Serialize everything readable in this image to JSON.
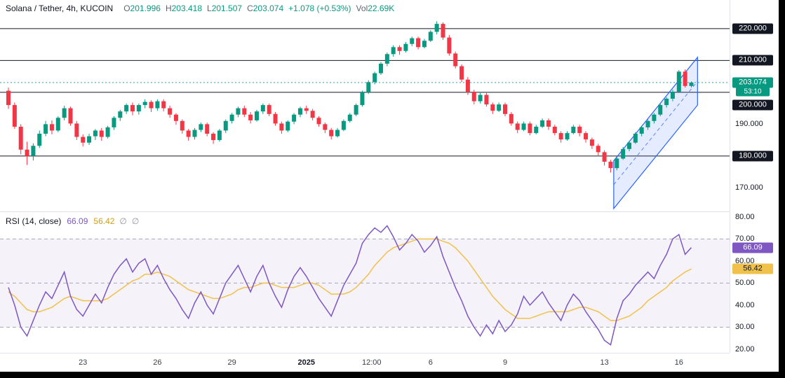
{
  "legend": {
    "symbol": "Solana / Tether, 4h, KUCOIN",
    "ohlc": [
      {
        "label": "O",
        "value": "201.996"
      },
      {
        "label": "H",
        "value": "203.418"
      },
      {
        "label": "L",
        "value": "201.507"
      },
      {
        "label": "C",
        "value": "203.074"
      }
    ],
    "change": "+1.078 (+0.53%)",
    "vol_label": "Vol",
    "vol_value": "22.69K"
  },
  "rsi_legend": {
    "title": "RSI (14, close)",
    "value": "66.09",
    "ma_value": "56.42",
    "icon": "∅"
  },
  "price_axis": {
    "plain": [
      {
        "text": "190.000",
        "price": 190
      },
      {
        "text": "170.000",
        "price": 170
      }
    ],
    "badges": [
      {
        "text": "220.000",
        "price": 220
      },
      {
        "text": "210.000",
        "price": 210
      },
      {
        "text": "200.000",
        "price": 200,
        "offset": 18
      },
      {
        "text": "180.000",
        "price": 180
      }
    ],
    "last": {
      "text": "203.074",
      "price": 203.074
    },
    "countdown": {
      "text": "53:10",
      "price": 203.074,
      "offset": 13
    }
  },
  "rsi_axis": {
    "plain": [
      {
        "text": "80.00",
        "value": 80
      },
      {
        "text": "70.00",
        "value": 70
      },
      {
        "text": "60.00",
        "value": 60
      },
      {
        "text": "50.00",
        "value": 50
      },
      {
        "text": "40.00",
        "value": 40
      },
      {
        "text": "30.00",
        "value": 30
      },
      {
        "text": "20.00",
        "value": 20
      }
    ],
    "badges": [
      {
        "text": "66.09",
        "value": 66.09,
        "bg": "#7e57c2",
        "fg": "#ffffff"
      },
      {
        "text": "56.42",
        "value": 56.42,
        "bg": "#f0c14b",
        "fg": "#131722"
      }
    ]
  },
  "colors": {
    "up": "#089981",
    "down": "#f23645",
    "level": "#131722",
    "rsi": "#7e57c2",
    "rsi_ma": "#f0c14b",
    "guide": "#a5a8b6",
    "band": "#7e57c2",
    "channel": "#2962ff",
    "sep": "#e0e3eb"
  },
  "chart_data": [
    {
      "type": "candlestick",
      "title": "Solana / Tether, 4h, KUCOIN",
      "last_bar": {
        "o": 201.996,
        "h": 203.418,
        "l": 201.507,
        "c": 203.074,
        "change": "+1.078 (+0.53%)",
        "volume": "22.69K"
      },
      "ylim": [
        163,
        229
      ],
      "horizontal_levels": [
        220,
        210,
        200,
        180
      ],
      "last_price_line": 203.074,
      "channel": {
        "x1_index": 97.5,
        "x2_index": 111,
        "upper": [
          178.5,
          211
        ],
        "lower": [
          163.5,
          196
        ]
      },
      "x_ticks": [
        {
          "text": "23",
          "index": 12
        },
        {
          "text": "26",
          "index": 24
        },
        {
          "text": "29",
          "index": 36
        },
        {
          "text": "2025",
          "index": 48,
          "bold": true
        },
        {
          "text": "12:00",
          "index": 58.5
        },
        {
          "text": "6",
          "index": 68
        },
        {
          "text": "9",
          "index": 80
        },
        {
          "text": "13",
          "index": 96
        },
        {
          "text": "16",
          "index": 108
        }
      ],
      "ohlc": [
        [
          200.5,
          201.5,
          194.8,
          196.0
        ],
        [
          196.0,
          196.8,
          188.5,
          189.2
        ],
        [
          189.2,
          190.0,
          180.5,
          182.0
        ],
        [
          182.0,
          184.5,
          177.2,
          180.0
        ],
        [
          180.0,
          184.0,
          178.6,
          183.2
        ],
        [
          183.2,
          188.0,
          182.5,
          187.0
        ],
        [
          187.0,
          191.0,
          186.2,
          190.0
        ],
        [
          190.0,
          191.2,
          186.8,
          188.0
        ],
        [
          188.0,
          192.5,
          187.5,
          192.0
        ],
        [
          192.0,
          195.8,
          191.2,
          195.0
        ],
        [
          195.0,
          195.5,
          189.5,
          190.2
        ],
        [
          190.2,
          191.0,
          185.0,
          186.0
        ],
        [
          186.0,
          186.8,
          183.0,
          184.2
        ],
        [
          184.2,
          187.0,
          183.5,
          186.2
        ],
        [
          186.2,
          188.5,
          185.0,
          188.0
        ],
        [
          188.0,
          188.8,
          184.8,
          186.0
        ],
        [
          186.0,
          189.5,
          185.5,
          189.0
        ],
        [
          189.0,
          192.5,
          188.2,
          192.0
        ],
        [
          192.0,
          194.5,
          191.0,
          194.0
        ],
        [
          194.0,
          196.5,
          193.2,
          196.0
        ],
        [
          196.0,
          196.8,
          192.8,
          194.0
        ],
        [
          194.0,
          196.5,
          193.0,
          196.0
        ],
        [
          196.0,
          197.8,
          195.0,
          197.0
        ],
        [
          197.0,
          197.5,
          193.8,
          195.0
        ],
        [
          195.0,
          197.8,
          194.2,
          197.2
        ],
        [
          197.2,
          197.8,
          194.0,
          195.0
        ],
        [
          195.0,
          195.8,
          192.0,
          193.0
        ],
        [
          193.0,
          193.5,
          189.8,
          191.0
        ],
        [
          191.0,
          191.5,
          187.0,
          188.0
        ],
        [
          188.0,
          188.5,
          184.8,
          186.0
        ],
        [
          186.0,
          188.8,
          185.2,
          188.2
        ],
        [
          188.2,
          190.5,
          187.5,
          190.0
        ],
        [
          190.0,
          190.5,
          186.2,
          187.0
        ],
        [
          187.0,
          187.5,
          183.8,
          185.0
        ],
        [
          185.0,
          188.5,
          184.5,
          188.0
        ],
        [
          188.0,
          191.5,
          187.2,
          191.0
        ],
        [
          191.0,
          193.5,
          190.2,
          193.0
        ],
        [
          193.0,
          195.5,
          192.2,
          195.0
        ],
        [
          195.0,
          195.8,
          192.2,
          193.0
        ],
        [
          193.0,
          193.8,
          190.2,
          191.2
        ],
        [
          191.2,
          194.5,
          190.8,
          194.0
        ],
        [
          194.0,
          196.5,
          193.2,
          196.0
        ],
        [
          196.0,
          196.5,
          192.5,
          193.2
        ],
        [
          193.2,
          193.8,
          189.5,
          190.2
        ],
        [
          190.2,
          190.8,
          187.0,
          188.0
        ],
        [
          188.0,
          191.2,
          187.5,
          190.8
        ],
        [
          190.8,
          193.5,
          190.0,
          193.0
        ],
        [
          193.0,
          195.5,
          192.2,
          195.0
        ],
        [
          195.0,
          195.8,
          193.2,
          194.2
        ],
        [
          194.2,
          194.8,
          191.2,
          192.0
        ],
        [
          192.0,
          192.5,
          189.2,
          190.0
        ],
        [
          190.0,
          190.5,
          187.2,
          188.2
        ],
        [
          188.2,
          188.8,
          185.2,
          186.2
        ],
        [
          186.2,
          188.8,
          185.8,
          188.2
        ],
        [
          188.2,
          191.5,
          187.8,
          191.0
        ],
        [
          191.0,
          193.5,
          190.5,
          193.0
        ],
        [
          193.0,
          196.5,
          192.5,
          196.0
        ],
        [
          196.0,
          200.5,
          195.5,
          200.0
        ],
        [
          200.0,
          203.8,
          199.5,
          203.2
        ],
        [
          203.2,
          206.5,
          202.5,
          206.0
        ],
        [
          206.0,
          209.5,
          205.5,
          209.0
        ],
        [
          209.0,
          212.5,
          208.2,
          212.0
        ],
        [
          212.0,
          214.8,
          211.2,
          214.2
        ],
        [
          214.2,
          214.8,
          211.8,
          213.0
        ],
        [
          213.0,
          215.8,
          212.5,
          215.2
        ],
        [
          215.2,
          217.5,
          214.5,
          217.0
        ],
        [
          217.0,
          217.5,
          213.5,
          214.2
        ],
        [
          214.2,
          216.8,
          213.8,
          216.2
        ],
        [
          216.2,
          219.5,
          215.8,
          219.0
        ],
        [
          219.0,
          222.3,
          218.2,
          221.5
        ],
        [
          221.5,
          222.0,
          216.5,
          217.2
        ],
        [
          217.2,
          218.0,
          211.5,
          212.2
        ],
        [
          212.2,
          212.8,
          207.5,
          208.2
        ],
        [
          208.2,
          208.8,
          203.2,
          204.0
        ],
        [
          204.0,
          204.8,
          199.2,
          200.2
        ],
        [
          200.2,
          200.8,
          196.2,
          197.2
        ],
        [
          197.2,
          199.8,
          196.5,
          199.2
        ],
        [
          199.2,
          199.8,
          195.5,
          196.2
        ],
        [
          196.2,
          196.8,
          193.2,
          194.2
        ],
        [
          194.2,
          196.8,
          193.8,
          196.2
        ],
        [
          196.2,
          196.8,
          192.5,
          193.2
        ],
        [
          193.2,
          193.8,
          189.5,
          190.2
        ],
        [
          190.2,
          190.8,
          187.2,
          188.2
        ],
        [
          188.2,
          190.8,
          187.8,
          190.2
        ],
        [
          190.2,
          190.8,
          186.5,
          187.2
        ],
        [
          187.2,
          189.8,
          186.8,
          189.2
        ],
        [
          189.2,
          191.8,
          188.8,
          191.2
        ],
        [
          191.2,
          191.8,
          188.2,
          189.2
        ],
        [
          189.2,
          189.8,
          186.5,
          187.2
        ],
        [
          187.2,
          187.8,
          184.2,
          185.2
        ],
        [
          185.2,
          187.8,
          184.8,
          187.2
        ],
        [
          187.2,
          189.8,
          186.8,
          189.2
        ],
        [
          189.2,
          189.8,
          186.2,
          187.2
        ],
        [
          187.2,
          187.8,
          184.2,
          185.2
        ],
        [
          185.2,
          185.8,
          182.2,
          183.2
        ],
        [
          183.2,
          183.8,
          180.2,
          181.2
        ],
        [
          181.2,
          181.8,
          177.0,
          178.2
        ],
        [
          178.2,
          178.8,
          174.8,
          176.2
        ],
        [
          176.2,
          179.8,
          175.5,
          179.2
        ],
        [
          179.2,
          182.8,
          178.8,
          182.2
        ],
        [
          182.2,
          184.8,
          181.5,
          184.2
        ],
        [
          184.2,
          187.5,
          183.8,
          187.0
        ],
        [
          187.0,
          189.5,
          186.2,
          189.0
        ],
        [
          189.0,
          191.5,
          188.2,
          191.0
        ],
        [
          191.0,
          193.5,
          190.2,
          193.0
        ],
        [
          193.0,
          196.5,
          192.5,
          196.0
        ],
        [
          196.0,
          198.5,
          195.2,
          198.0
        ],
        [
          198.0,
          200.8,
          197.2,
          200.2
        ],
        [
          200.2,
          207.0,
          199.8,
          206.5
        ],
        [
          206.5,
          207.2,
          201.5,
          202.0
        ],
        [
          201.996,
          203.418,
          201.507,
          203.074
        ]
      ]
    },
    {
      "type": "line",
      "title": "RSI (14, close)",
      "ylim": [
        20,
        80
      ],
      "guides": [
        70,
        50,
        30
      ],
      "band": [
        30,
        70
      ],
      "series": [
        {
          "name": "RSI",
          "color": "#7e57c2",
          "last": 66.09,
          "values": [
            48,
            40,
            30,
            26,
            33,
            40,
            46,
            43,
            49,
            55,
            44,
            38,
            35,
            40,
            45,
            41,
            48,
            54,
            58,
            61,
            55,
            59,
            61,
            54,
            58,
            52,
            47,
            43,
            38,
            34,
            41,
            46,
            40,
            36,
            43,
            50,
            54,
            58,
            52,
            46,
            53,
            58,
            50,
            44,
            39,
            47,
            53,
            57,
            53,
            48,
            43,
            39,
            35,
            42,
            49,
            54,
            59,
            68,
            72,
            75,
            73,
            76,
            71,
            65,
            68,
            72,
            69,
            64,
            67,
            71,
            62,
            55,
            48,
            42,
            35,
            30,
            26,
            31,
            27,
            33,
            28,
            31,
            36,
            44,
            40,
            43,
            46,
            41,
            37,
            33,
            40,
            45,
            42,
            37,
            33,
            29,
            24,
            22,
            34,
            42,
            45,
            49,
            52,
            55,
            52,
            58,
            63,
            70,
            72,
            63,
            66.09
          ]
        },
        {
          "name": "RSI MA",
          "color": "#f0c14b",
          "last": 56.42,
          "values": [
            46,
            44,
            41,
            38,
            37,
            37,
            38,
            39,
            41,
            43,
            44,
            43,
            42,
            42,
            42,
            42,
            43,
            45,
            47,
            49,
            51,
            52,
            54,
            54,
            55,
            54,
            53,
            51,
            49,
            47,
            46,
            45,
            44,
            43,
            43,
            44,
            45,
            47,
            48,
            48,
            49,
            50,
            50,
            49,
            48,
            48,
            48,
            49,
            50,
            50,
            49,
            47,
            45,
            45,
            45,
            46,
            48,
            51,
            54,
            58,
            61,
            64,
            66,
            67,
            68,
            69,
            70,
            70,
            70,
            70,
            69,
            68,
            66,
            63,
            60,
            56,
            52,
            48,
            44,
            41,
            38,
            36,
            34,
            34,
            34,
            35,
            36,
            37,
            37,
            37,
            37,
            38,
            39,
            39,
            38,
            37,
            35,
            33,
            33,
            34,
            35,
            37,
            39,
            42,
            44,
            46,
            48,
            51,
            53,
            55,
            56.42
          ]
        }
      ]
    }
  ]
}
